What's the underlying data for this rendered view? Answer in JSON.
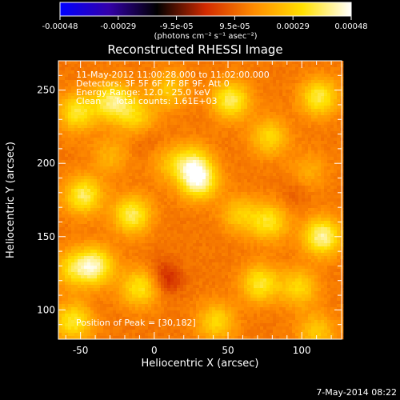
{
  "colorbar": {
    "tick_labels": [
      "-0.00048",
      "-0.00029",
      "-9.5e-05",
      "9.5e-05",
      "0.00029",
      "0.00048"
    ],
    "unit_label": "(photons cm⁻² s⁻¹ asec⁻²)",
    "range": [
      -0.00048,
      0.00048
    ],
    "colormap": [
      "#0000ff",
      "#3300aa",
      "#000000",
      "#d12a00",
      "#ff8c00",
      "#ffe000",
      "#ffffff"
    ]
  },
  "chart_data": {
    "type": "heatmap",
    "title": "Reconstructed RHESSI Image",
    "xlabel": "Heliocentric X (arcsec)",
    "ylabel": "Heliocentric Y (arcsec)",
    "xlim": [
      -65,
      127
    ],
    "ylim": [
      80,
      270
    ],
    "x_ticks": [
      -50,
      0,
      50,
      100
    ],
    "y_ticks": [
      100,
      150,
      200,
      250
    ],
    "x_tick_labels": [
      "-50",
      "0",
      "50",
      "100"
    ],
    "y_tick_labels": [
      "100",
      "150",
      "200",
      "250"
    ],
    "annotations": [
      "11-May-2012 11:00:28.000 to 11:02:00.000",
      "Detectors: 3F 5F 6F 7F 8F 9F, Att 0",
      "Energy Range: 12.0 - 25.0 keV",
      "Clean     Total counts: 1.61E+03"
    ],
    "peak_label": "Position of Peak = [30,182]",
    "peak_position": [
      30,
      182
    ],
    "sources": [
      {
        "x": -28,
        "y": 242,
        "v": 0.9
      },
      {
        "x": -52,
        "y": 235,
        "v": 0.75
      },
      {
        "x": -12,
        "y": 232,
        "v": 0.55
      },
      {
        "x": 10,
        "y": 250,
        "v": 0.5
      },
      {
        "x": 52,
        "y": 243,
        "v": 0.85
      },
      {
        "x": 112,
        "y": 245,
        "v": 0.8
      },
      {
        "x": 78,
        "y": 218,
        "v": 0.6
      },
      {
        "x": 30,
        "y": 188,
        "v": 1.0
      },
      {
        "x": 26,
        "y": 200,
        "v": 0.7
      },
      {
        "x": -48,
        "y": 178,
        "v": 0.85
      },
      {
        "x": -15,
        "y": 165,
        "v": 0.85
      },
      {
        "x": 10,
        "y": 200,
        "v": 0.35
      },
      {
        "x": 78,
        "y": 160,
        "v": 0.7
      },
      {
        "x": 58,
        "y": 165,
        "v": 0.5
      },
      {
        "x": 114,
        "y": 150,
        "v": 1.0
      },
      {
        "x": -40,
        "y": 130,
        "v": 0.95
      },
      {
        "x": -55,
        "y": 128,
        "v": 0.6
      },
      {
        "x": 72,
        "y": 118,
        "v": 0.75
      },
      {
        "x": 98,
        "y": 115,
        "v": 0.6
      },
      {
        "x": -10,
        "y": 115,
        "v": 0.7
      },
      {
        "x": -55,
        "y": 92,
        "v": 0.75
      },
      {
        "x": 42,
        "y": 92,
        "v": 0.6
      },
      {
        "x": 110,
        "y": 85,
        "v": 0.5
      },
      {
        "x": -30,
        "y": 205,
        "v": 0.35
      },
      {
        "x": 105,
        "y": 195,
        "v": 0.3
      }
    ],
    "negative_sources": [
      {
        "x": 10,
        "y": 120,
        "v": 0.6
      },
      {
        "x": 5,
        "y": 128,
        "v": 0.3
      },
      {
        "x": -5,
        "y": 215,
        "v": 0.25
      },
      {
        "x": 95,
        "y": 180,
        "v": 0.25
      }
    ]
  },
  "footer": {
    "date": "7-May-2014 08:22"
  }
}
